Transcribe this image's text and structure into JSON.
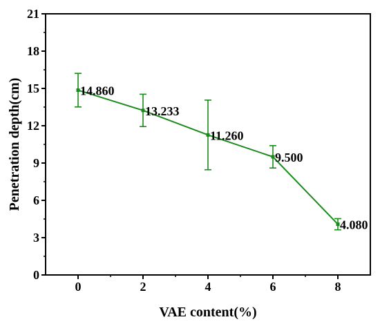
{
  "chart_data": {
    "type": "line",
    "xlabel": "VAE content(%)",
    "ylabel": "Penetration depth(cm)",
    "xlim": [
      -1,
      9
    ],
    "ylim": [
      0,
      21
    ],
    "x_ticks": [
      "0",
      "2",
      "4",
      "6",
      "8"
    ],
    "y_ticks": [
      "0",
      "3",
      "6",
      "9",
      "12",
      "15",
      "18",
      "21"
    ],
    "x": [
      0,
      2,
      4,
      6,
      8
    ],
    "series": [
      {
        "values": [
          14.86,
          13.233,
          11.26,
          9.5,
          4.08
        ],
        "labels": [
          "14.860",
          "13.233",
          "11.260",
          "9.500",
          "4.080"
        ],
        "error": [
          1.35,
          1.3,
          2.8,
          0.9,
          0.45
        ],
        "color": "#1a8a1a"
      }
    ],
    "grid": false,
    "legend": "none"
  }
}
